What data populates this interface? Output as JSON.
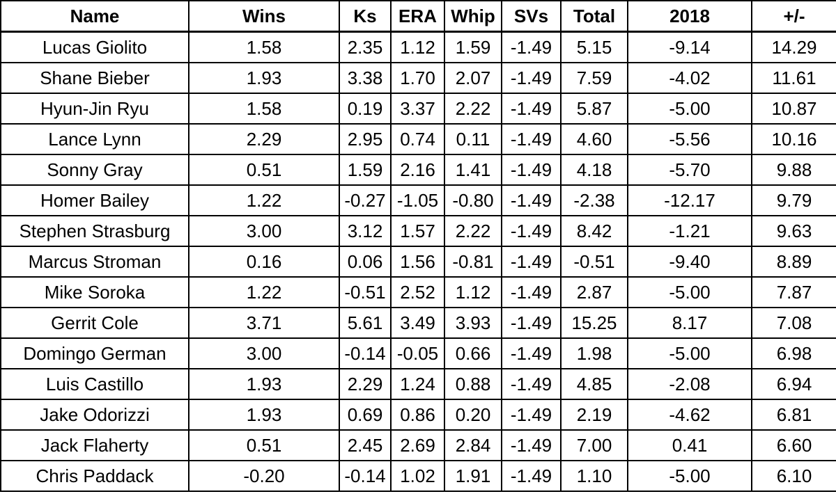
{
  "table": {
    "headers": [
      "Name",
      "Wins",
      "Ks",
      "ERA",
      "Whip",
      "SVs",
      "Total",
      "2018",
      "+/-"
    ],
    "rows": [
      [
        "Lucas Giolito",
        "1.58",
        "2.35",
        "1.12",
        "1.59",
        "-1.49",
        "5.15",
        "-9.14",
        "14.29"
      ],
      [
        "Shane Bieber",
        "1.93",
        "3.38",
        "1.70",
        "2.07",
        "-1.49",
        "7.59",
        "-4.02",
        "11.61"
      ],
      [
        "Hyun-Jin Ryu",
        "1.58",
        "0.19",
        "3.37",
        "2.22",
        "-1.49",
        "5.87",
        "-5.00",
        "10.87"
      ],
      [
        "Lance Lynn",
        "2.29",
        "2.95",
        "0.74",
        "0.11",
        "-1.49",
        "4.60",
        "-5.56",
        "10.16"
      ],
      [
        "Sonny Gray",
        "0.51",
        "1.59",
        "2.16",
        "1.41",
        "-1.49",
        "4.18",
        "-5.70",
        "9.88"
      ],
      [
        "Homer Bailey",
        "1.22",
        "-0.27",
        "-1.05",
        "-0.80",
        "-1.49",
        "-2.38",
        "-12.17",
        "9.79"
      ],
      [
        "Stephen Strasburg",
        "3.00",
        "3.12",
        "1.57",
        "2.22",
        "-1.49",
        "8.42",
        "-1.21",
        "9.63"
      ],
      [
        "Marcus Stroman",
        "0.16",
        "0.06",
        "1.56",
        "-0.81",
        "-1.49",
        "-0.51",
        "-9.40",
        "8.89"
      ],
      [
        "Mike Soroka",
        "1.22",
        "-0.51",
        "2.52",
        "1.12",
        "-1.49",
        "2.87",
        "-5.00",
        "7.87"
      ],
      [
        "Gerrit Cole",
        "3.71",
        "5.61",
        "3.49",
        "3.93",
        "-1.49",
        "15.25",
        "8.17",
        "7.08"
      ],
      [
        "Domingo German",
        "3.00",
        "-0.14",
        "-0.05",
        "0.66",
        "-1.49",
        "1.98",
        "-5.00",
        "6.98"
      ],
      [
        "Luis Castillo",
        "1.93",
        "2.29",
        "1.24",
        "0.88",
        "-1.49",
        "4.85",
        "-2.08",
        "6.94"
      ],
      [
        "Jake Odorizzi",
        "1.93",
        "0.69",
        "0.86",
        "0.20",
        "-1.49",
        "2.19",
        "-4.62",
        "6.81"
      ],
      [
        "Jack Flaherty",
        "0.51",
        "2.45",
        "2.69",
        "2.84",
        "-1.49",
        "7.00",
        "0.41",
        "6.60"
      ],
      [
        "Chris Paddack",
        "-0.20",
        "-0.14",
        "1.02",
        "1.91",
        "-1.49",
        "1.10",
        "-5.00",
        "6.10"
      ]
    ]
  }
}
